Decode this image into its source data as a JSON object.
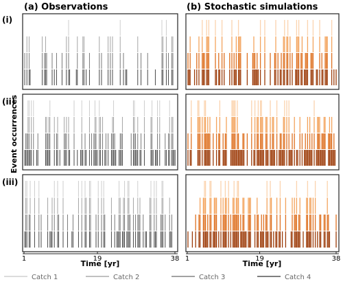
{
  "figure": {
    "col_titles": [
      "(a) Observations",
      "(b) Stochastic simulations"
    ],
    "row_labels": [
      "(i)",
      "(ii)",
      "(iii)"
    ],
    "ylabel": "Event occurrences",
    "xlabel": "Time [yr]",
    "x_ticks": [
      1,
      19,
      38
    ],
    "legend": [
      {
        "label": "Catch 1",
        "color": "#c8c8c8"
      },
      {
        "label": "Catch 2",
        "color": "#9a9a9a"
      },
      {
        "label": "Catch 3",
        "color": "#6a6a6a"
      },
      {
        "label": "Catch 4",
        "color": "#333333"
      }
    ],
    "colors": {
      "obs": [
        "#c8c8c8",
        "#9a9a9a",
        "#6a6a6a",
        "#333333"
      ],
      "sim": [
        "#fbd3ae",
        "#f3a35c",
        "#de7020",
        "#9c3b08"
      ]
    }
  },
  "chart_data": [
    {
      "type": "bar",
      "panel": "a-i",
      "xlim": [
        1,
        38
      ],
      "catch_levels": [
        1,
        2,
        3,
        4
      ],
      "density": 0.9,
      "seed": 11
    },
    {
      "type": "bar",
      "panel": "b-i",
      "xlim": [
        1,
        38
      ],
      "catch_levels": [
        1,
        2,
        3,
        4
      ],
      "density": 1.6,
      "seed": 12
    },
    {
      "type": "bar",
      "panel": "a-ii",
      "xlim": [
        1,
        38
      ],
      "catch_levels": [
        1,
        2,
        3,
        4
      ],
      "density": 1.5,
      "seed": 21
    },
    {
      "type": "bar",
      "panel": "b-ii",
      "xlim": [
        1,
        38
      ],
      "catch_levels": [
        1,
        2,
        3,
        4
      ],
      "density": 2.2,
      "seed": 22
    },
    {
      "type": "bar",
      "panel": "a-iii",
      "xlim": [
        1,
        38
      ],
      "catch_levels": [
        1,
        2,
        3,
        4
      ],
      "density": 1.3,
      "seed": 31
    },
    {
      "type": "bar",
      "panel": "b-iii",
      "xlim": [
        1,
        38
      ],
      "catch_levels": [
        1,
        2,
        3,
        4
      ],
      "density": 2.0,
      "seed": 32
    }
  ]
}
